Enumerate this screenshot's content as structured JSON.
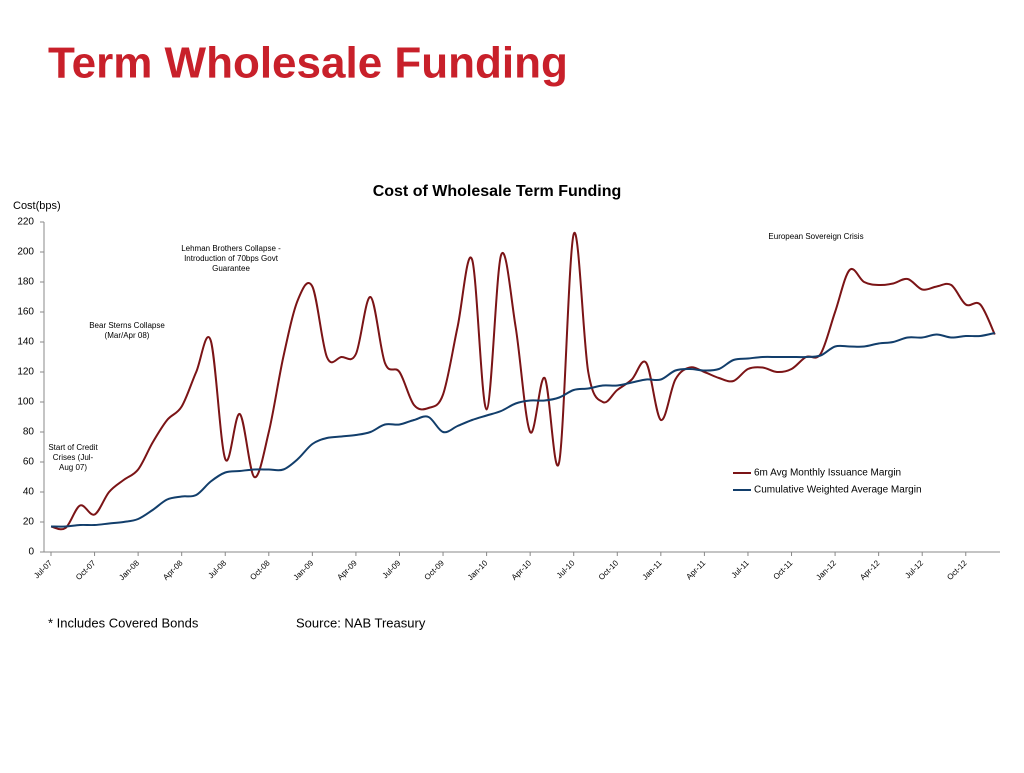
{
  "slide_title": "Term Wholesale Funding",
  "chart_data": {
    "type": "line",
    "title": "Cost of Wholesale Term Funding",
    "y_label": "Cost(bps)",
    "categories": [
      "Jul-07",
      null,
      null,
      "Oct-07",
      null,
      null,
      "Jan-08",
      null,
      null,
      "Apr-08",
      null,
      null,
      "Jul-08",
      null,
      null,
      "Oct-08",
      null,
      null,
      "Jan-09",
      null,
      null,
      "Apr-09",
      null,
      null,
      "Jul-09",
      null,
      null,
      "Oct-09",
      null,
      null,
      "Jan-10",
      null,
      null,
      "Apr-10",
      null,
      null,
      "Jul-10",
      null,
      null,
      "Oct-10",
      null,
      null,
      "Jan-11",
      null,
      null,
      "Apr-11",
      null,
      null,
      "Jul-11",
      null,
      null,
      "Oct-11",
      null,
      null,
      "Jan-12",
      null,
      null,
      "Apr-12",
      null,
      null,
      "Jul-12",
      null,
      null,
      "Oct-12",
      null,
      null
    ],
    "series": [
      {
        "name": "6m Avg Monthly Issuance Margin",
        "color": "#7b1416",
        "values": [
          17,
          16,
          31,
          25,
          40,
          48,
          55,
          73,
          88,
          97,
          120,
          141,
          62,
          92,
          50,
          80,
          130,
          168,
          177,
          130,
          130,
          132,
          170,
          126,
          120,
          98,
          96,
          105,
          150,
          195,
          95,
          198,
          150,
          80,
          116,
          60,
          212,
          120,
          100,
          108,
          115,
          126,
          88,
          115,
          123,
          120,
          116,
          114,
          122,
          123,
          120,
          122,
          130,
          132,
          160,
          188,
          180,
          178,
          179,
          182,
          175,
          177,
          178,
          165,
          165,
          145
        ]
      },
      {
        "name": "Cumulative Weighted Average Margin",
        "color": "#123e6b",
        "values": [
          17,
          17,
          18,
          18,
          19,
          20,
          22,
          28,
          35,
          37,
          38,
          47,
          53,
          54,
          55,
          55,
          55,
          62,
          72,
          76,
          77,
          78,
          80,
          85,
          85,
          88,
          90,
          80,
          84,
          88,
          91,
          94,
          99,
          101,
          101,
          103,
          108,
          109,
          111,
          111,
          113,
          115,
          115,
          121,
          122,
          121,
          122,
          128,
          129,
          130,
          130,
          130,
          130,
          131,
          137,
          137,
          137,
          139,
          140,
          143,
          143,
          145,
          143,
          144,
          144,
          146
        ]
      }
    ],
    "ylim": [
      0,
      220
    ],
    "yticks": [
      0,
      20,
      40,
      60,
      80,
      100,
      120,
      140,
      160,
      180,
      200,
      220
    ],
    "grid": false,
    "legend": "lower right",
    "annotations": [
      {
        "lines": [
          "Start of Credit",
          "Crises (Jul-",
          "Aug 07)"
        ]
      },
      {
        "lines": [
          "Bear Sterns Collapse",
          "(Mar/Apr 08)"
        ]
      },
      {
        "lines": [
          "Lehman Brothers Collapse -",
          "Introduction of 70bps Govt",
          "Guarantee"
        ]
      },
      {
        "lines": [
          "European Sovereign Crisis"
        ]
      }
    ]
  },
  "footnotes": [
    "* Includes Covered Bonds",
    "Source: NAB Treasury"
  ]
}
